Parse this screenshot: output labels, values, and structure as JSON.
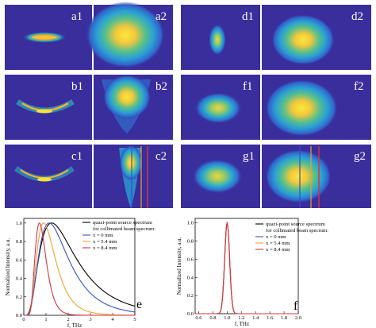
{
  "colors": {
    "panel_bg": "#3a2d9c",
    "blue": "#3650c8",
    "orange": "#f0a030",
    "red": "#d8353e",
    "black": "#000000"
  },
  "panels": [
    "a1",
    "a2",
    "d1",
    "d2",
    "b1",
    "b2",
    "f1",
    "f2",
    "c1",
    "c2",
    "g1",
    "g2"
  ],
  "chart_data": [
    {
      "type": "line",
      "panel_letter": "e",
      "xlabel": "f, THz",
      "ylabel": "Normalized Intensity, a.u.",
      "xlim": [
        0,
        5
      ],
      "ylim": [
        0,
        1.05
      ],
      "xticks": [
        "0",
        "1",
        "2",
        "3",
        "4",
        "5"
      ],
      "yticks": [
        "0.0",
        "0.2",
        "0.4",
        "0.6",
        "0.8",
        "1.0"
      ],
      "legend_title": [
        "quazi-point source spectrum",
        "for collimated beam specrum:"
      ],
      "legend_placement": "top-right",
      "series": [
        {
          "name": "",
          "color": "#000000",
          "peak": 1.55,
          "width": 0.9
        },
        {
          "name": "x = 0 mm",
          "color": "#3650c8",
          "peak": 1.35,
          "width": 0.8
        },
        {
          "name": "x = 5.4 mm",
          "color": "#f0a030",
          "peak": 1.0,
          "width": 0.65
        },
        {
          "name": "x = 8.4 mm",
          "color": "#d8353e",
          "peak": 0.75,
          "width": 0.5
        }
      ]
    },
    {
      "type": "line",
      "panel_letter": "f",
      "xlabel": "f, THz",
      "ylabel": "Normalized Intensity, a.u.",
      "xlim": [
        0.55,
        2.0
      ],
      "ylim": [
        0,
        1.05
      ],
      "xticks": [
        "0.6",
        "0.8",
        "1.0",
        "1.2",
        "1.4",
        "1.6",
        "1.8",
        "2.0"
      ],
      "yticks": [
        "0.0",
        "0.2",
        "0.4",
        "0.6",
        "0.8",
        "1.0"
      ],
      "legend_title": [
        "quazi-point source spectrum",
        "for collimated beam specrum:"
      ],
      "legend_placement": "top-right",
      "series": [
        {
          "name": "",
          "color": "#000000",
          "peak": 1.0,
          "width": 0.035
        },
        {
          "name": "x = 0 mm",
          "color": "#3650c8",
          "peak": 1.0,
          "width": 0.035
        },
        {
          "name": "x = 5.4 mm",
          "color": "#f0a030",
          "peak": 1.0,
          "width": 0.035
        },
        {
          "name": "x = 8.4 mm",
          "color": "#d8353e",
          "peak": 1.0,
          "width": 0.035
        }
      ]
    }
  ]
}
